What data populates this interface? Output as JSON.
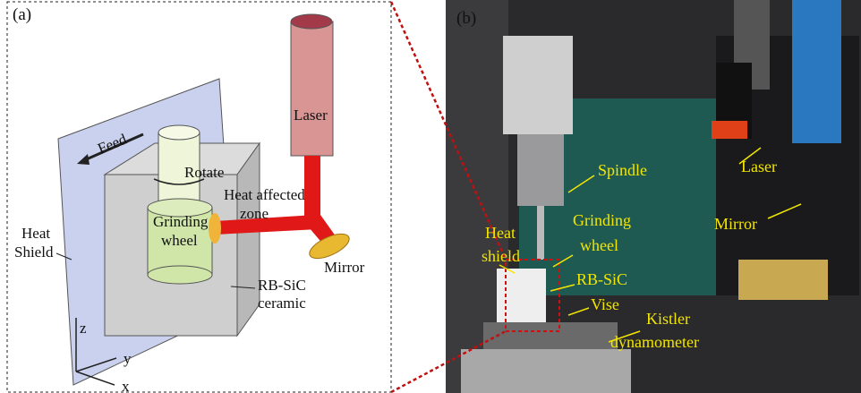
{
  "panel_a": {
    "tag": "(a)",
    "labels": [
      {
        "lines": [
          "Laser"
        ]
      },
      {
        "lines": [
          "Feed"
        ]
      },
      {
        "lines": [
          "Rotate"
        ]
      },
      {
        "lines": [
          "Heat affected",
          "zone"
        ]
      },
      {
        "lines": [
          "Grinding",
          "wheel"
        ]
      },
      {
        "lines": [
          "Heat",
          "Shield"
        ]
      },
      {
        "lines": [
          "Mirror"
        ]
      },
      {
        "lines": [
          "RB-SiC",
          "ceramic"
        ]
      }
    ],
    "axes": [
      "z",
      "y",
      "x"
    ]
  },
  "panel_b": {
    "tag": "(b)",
    "labels": [
      {
        "lines": [
          "Spindle"
        ]
      },
      {
        "lines": [
          "Laser"
        ]
      },
      {
        "lines": [
          "Grinding",
          "wheel"
        ]
      },
      {
        "lines": [
          "Heat",
          "shield"
        ]
      },
      {
        "lines": [
          "Mirror"
        ]
      },
      {
        "lines": [
          "RB-SiC"
        ]
      },
      {
        "lines": [
          "Vise"
        ]
      },
      {
        "lines": [
          "Kistler",
          "dynamometer"
        ]
      }
    ]
  }
}
